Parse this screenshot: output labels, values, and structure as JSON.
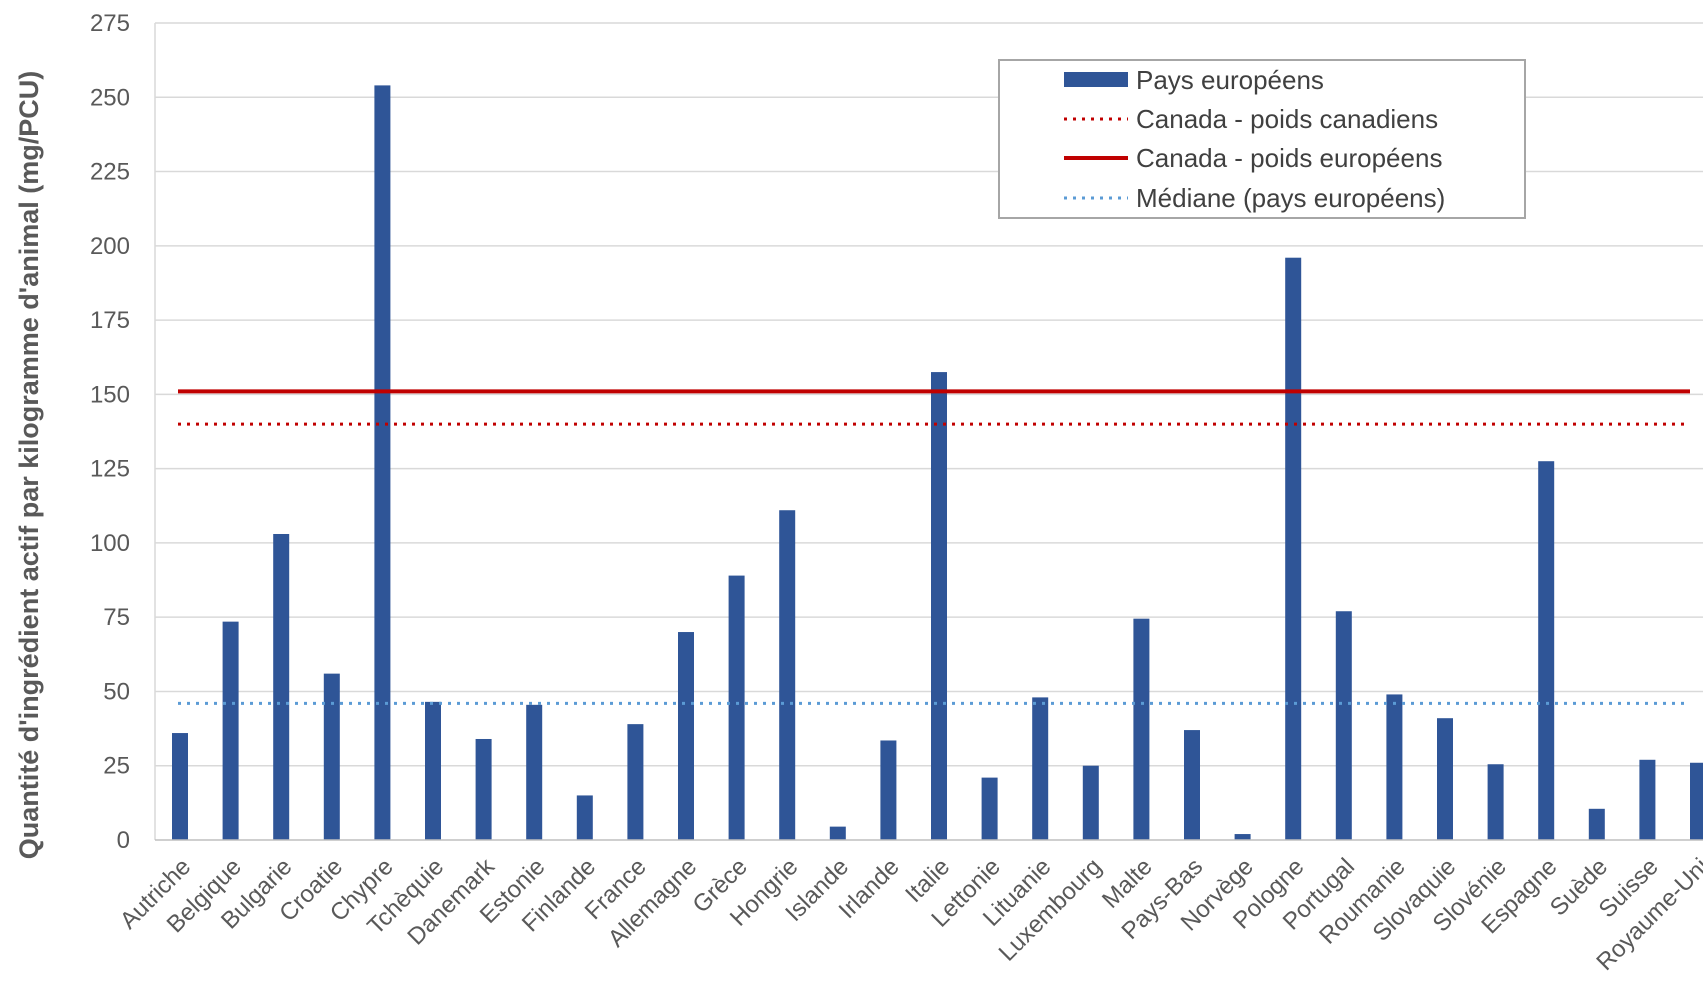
{
  "chart_data": {
    "type": "bar",
    "ylabel": "Quantité d'ingrédient actif par kilogramme d'animal  (mg/PCU)",
    "xlabel": "",
    "ylim": [
      0,
      275
    ],
    "yticks": [
      0,
      25,
      50,
      75,
      100,
      125,
      150,
      175,
      200,
      225,
      250,
      275
    ],
    "grid": true,
    "legend_position": "top-right",
    "categories": [
      "Autriche",
      "Belgique",
      "Bulgarie",
      "Croatie",
      "Chypre",
      "Tchèquie",
      "Danemark",
      "Estonie",
      "Finlande",
      "France",
      "Allemagne",
      "Grèce",
      "Hongrie",
      "Islande",
      "Irlande",
      "Italie",
      "Lettonie",
      "Lituanie",
      "Luxembourg",
      "Malte",
      "Pays-Bas",
      "Norvège",
      "Pologne",
      "Portugal",
      "Roumanie",
      "Slovaquie",
      "Slovénie",
      "Espagne",
      "Suède",
      "Suisse",
      "Royaume-Uni"
    ],
    "series": [
      {
        "name": "Pays européens",
        "color": "#2f5597",
        "values": [
          36,
          73.5,
          103,
          56,
          254,
          46.5,
          34,
          45.5,
          15,
          39,
          70,
          89,
          111,
          4.5,
          33.5,
          157.5,
          21,
          48,
          25,
          74.5,
          37,
          2,
          196,
          77,
          49,
          41,
          25.5,
          127.5,
          10.5,
          27,
          26
        ]
      }
    ],
    "reference_lines": [
      {
        "name": "Canada - poids canadiens",
        "value": 140,
        "color": "#c00000",
        "style": "dotted"
      },
      {
        "name": "Canada - poids européens",
        "value": 151,
        "color": "#c00000",
        "style": "solid"
      },
      {
        "name": "Médiane (pays européens)",
        "value": 46,
        "color": "#5b9bd5",
        "style": "dotted"
      }
    ]
  }
}
